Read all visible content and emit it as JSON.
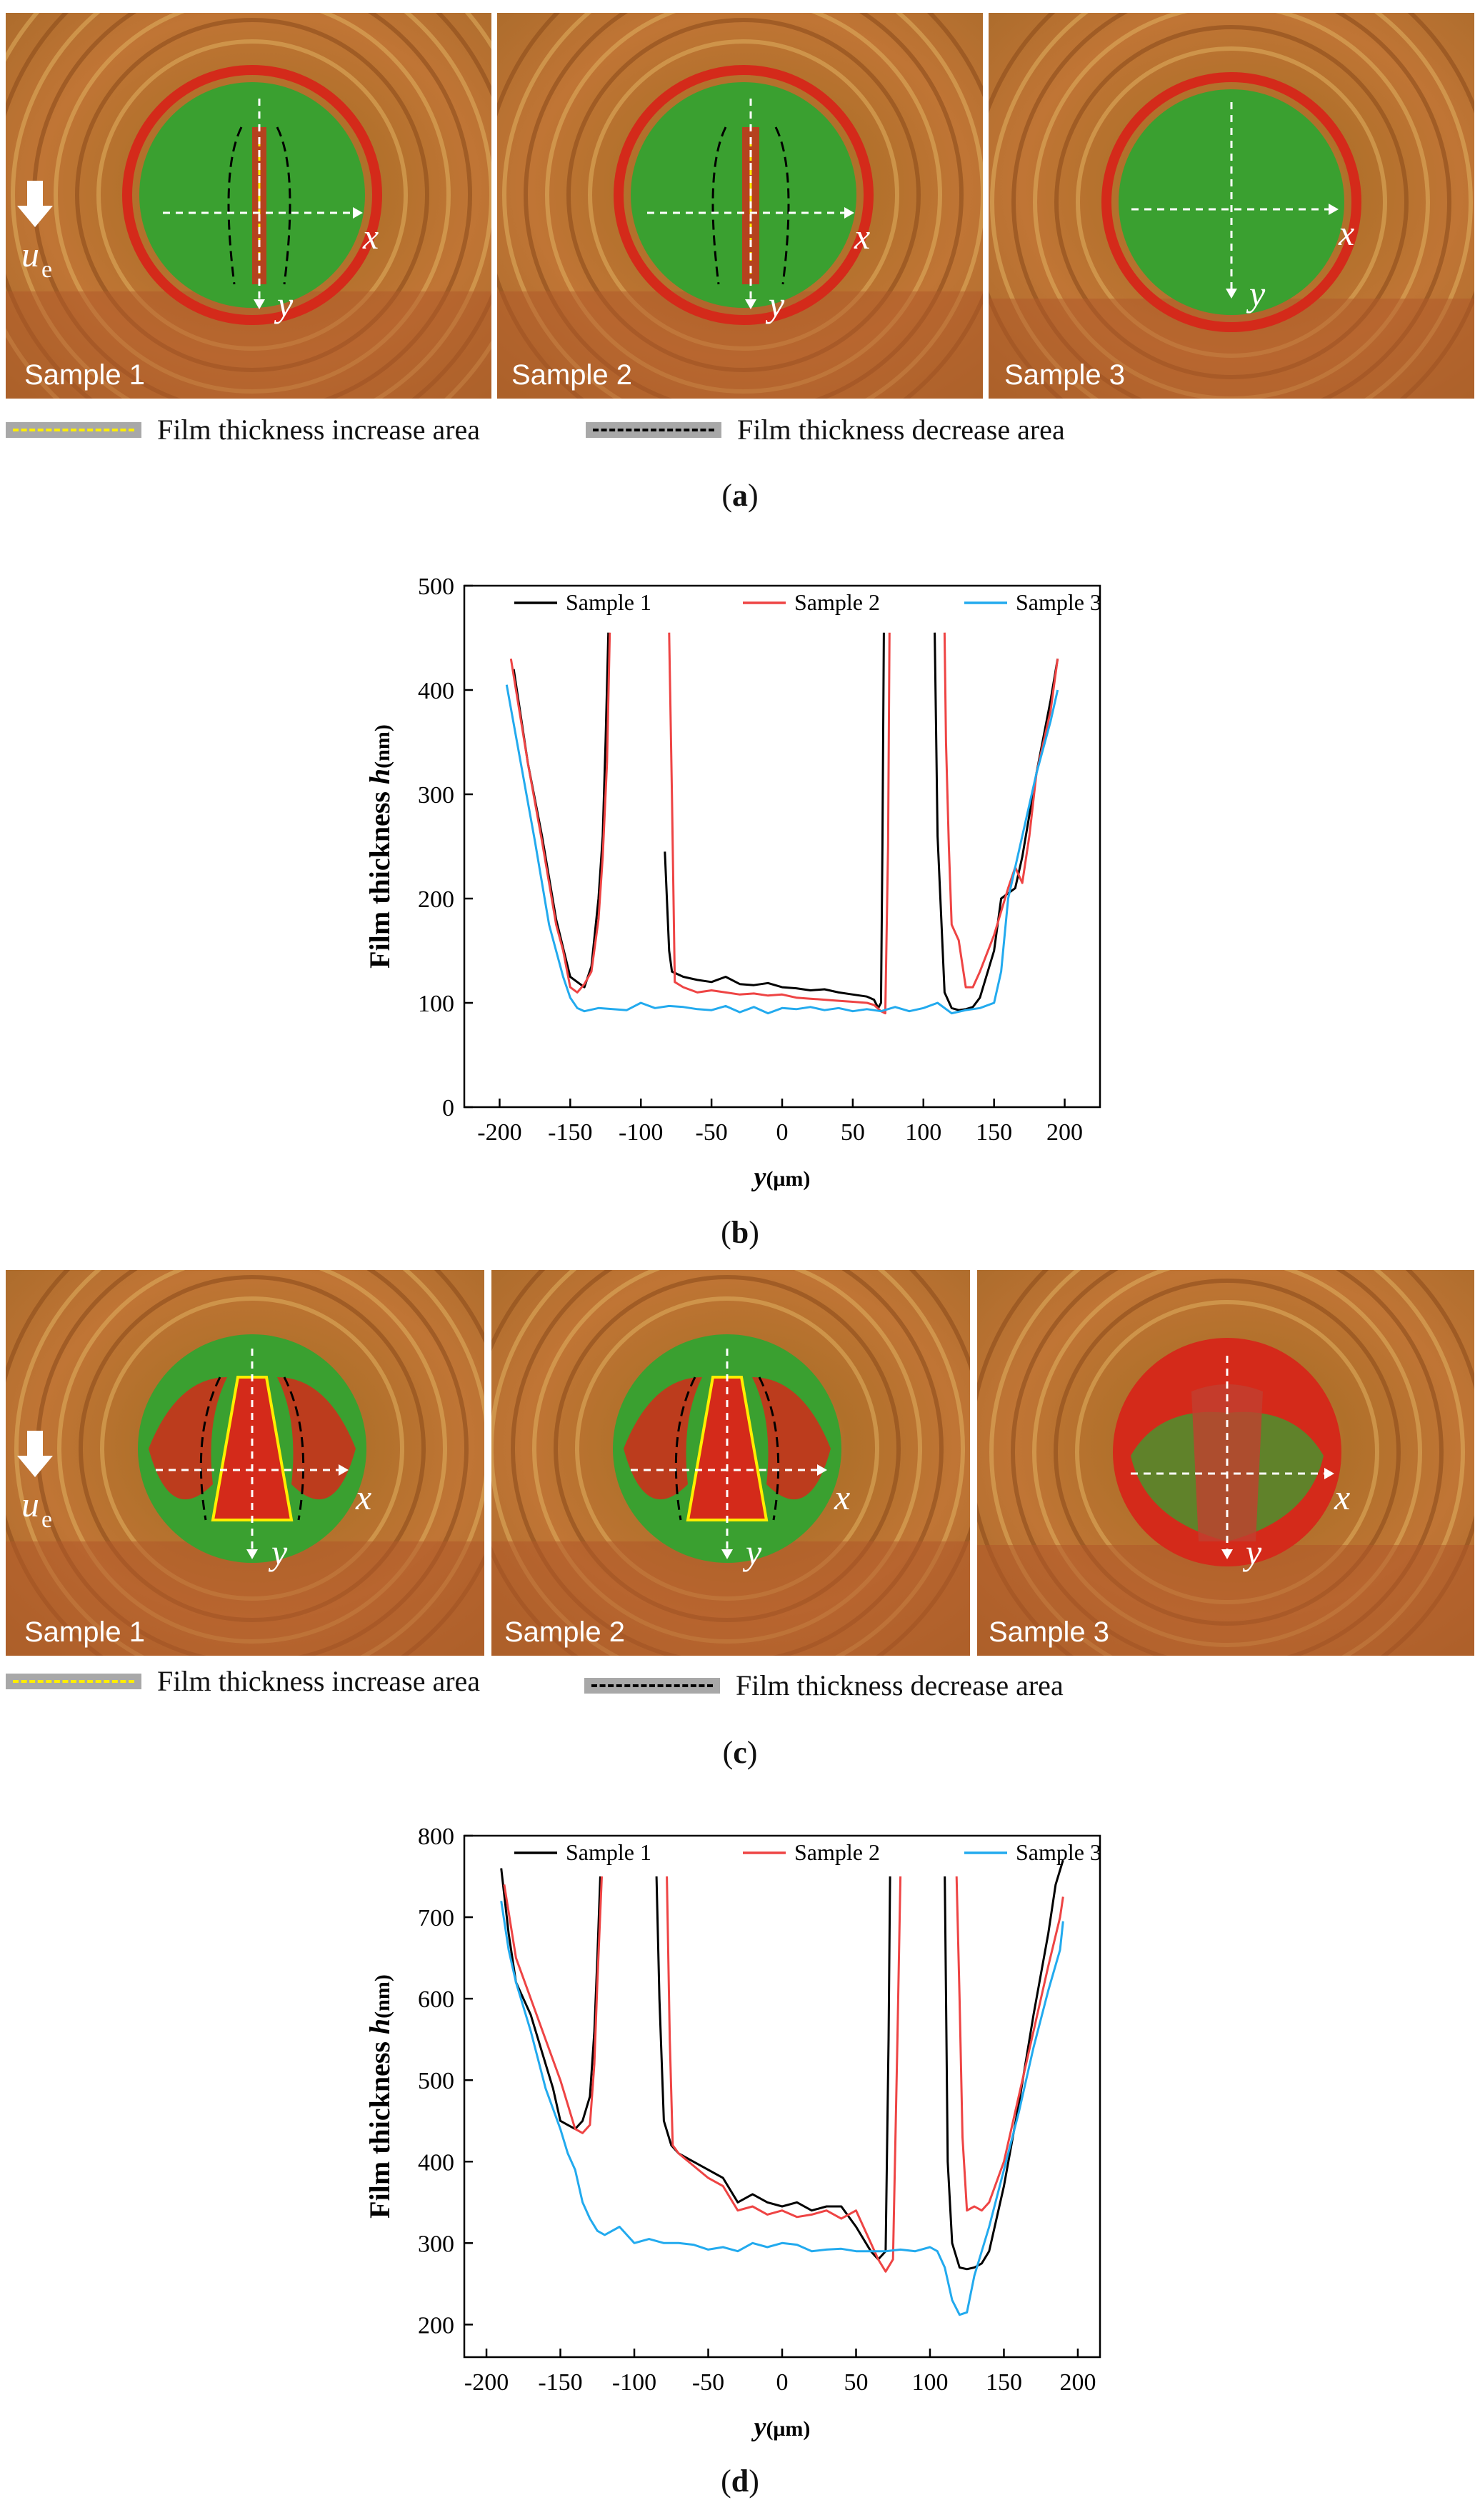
{
  "panels": {
    "a": {
      "label": "a",
      "images": [
        {
          "label": "Sample 1",
          "x_axis": "x",
          "y_axis": "y",
          "speed_symbol": "u",
          "speed_subscript": "e"
        },
        {
          "label": "Sample 2",
          "x_axis": "x",
          "y_axis": "y"
        },
        {
          "label": "Sample 3",
          "x_axis": "x",
          "y_axis": "y"
        }
      ],
      "legend": {
        "increase": "Film thickness increase area",
        "decrease": "Film thickness decrease area"
      }
    },
    "b": {
      "label": "b"
    },
    "c": {
      "label": "c",
      "images": [
        {
          "label": "Sample 1",
          "x_axis": "x",
          "y_axis": "y",
          "speed_symbol": "u",
          "speed_subscript": "e"
        },
        {
          "label": "Sample 2",
          "x_axis": "x",
          "y_axis": "y"
        },
        {
          "label": "Sample 3",
          "x_axis": "x",
          "y_axis": "y"
        }
      ],
      "legend": {
        "increase": "Film thickness increase area",
        "decrease": "Film thickness decrease area"
      }
    },
    "d": {
      "label": "d"
    }
  },
  "colors": {
    "sample1": "#000000",
    "sample2": "#ee4444",
    "sample3": "#22aaee",
    "increase_dash": "#ffee00",
    "decrease_dash": "#000000",
    "fringe_orange": "#c8853a",
    "fringe_red": "#d42a1a",
    "fringe_green": "#3aa030"
  },
  "chart_data": [
    {
      "id": "b",
      "type": "line",
      "ylabel": "Film thickness h",
      "ylabel_unit": "(nm)",
      "xlabel": "y",
      "xlabel_unit": "(μm)",
      "xlim": [
        -225,
        225
      ],
      "ylim": [
        0,
        500
      ],
      "xticks": [
        -200,
        -150,
        -100,
        -50,
        0,
        50,
        100,
        150,
        200
      ],
      "yticks": [
        0,
        100,
        200,
        300,
        400,
        500
      ],
      "series": [
        {
          "name": "Sample 1",
          "color": "#000000",
          "segments": [
            {
              "x": [
                -190,
                -180,
                -170,
                -160,
                -150,
                -145,
                -140,
                -135,
                -130,
                -127,
                -125,
                -123
              ],
              "y": [
                420,
                330,
                260,
                180,
                125,
                120,
                115,
                135,
                200,
                260,
                350,
                455
              ]
            },
            {
              "x": [
                -83,
                -80,
                -78,
                -70,
                -60,
                -50,
                -40,
                -30,
                -20,
                -10,
                0,
                10,
                20,
                30,
                40,
                50,
                60,
                65,
                68,
                70,
                71,
                72
              ],
              "y": [
                245,
                150,
                130,
                125,
                122,
                120,
                125,
                118,
                117,
                119,
                115,
                114,
                112,
                113,
                110,
                108,
                106,
                103,
                95,
                100,
                250,
                455
              ]
            },
            {
              "x": [
                108,
                110,
                115,
                120,
                125,
                130,
                135,
                140,
                150,
                155,
                160,
                165,
                170,
                180,
                190,
                195
              ],
              "y": [
                455,
                260,
                110,
                95,
                93,
                94,
                96,
                105,
                150,
                200,
                205,
                210,
                240,
                320,
                390,
                430
              ]
            }
          ]
        },
        {
          "name": "Sample 2",
          "color": "#ee4444",
          "segments": [
            {
              "x": [
                -192,
                -180,
                -170,
                -160,
                -155,
                -150,
                -145,
                -140,
                -135,
                -130,
                -127,
                -124,
                -122
              ],
              "y": [
                430,
                330,
                255,
                175,
                150,
                115,
                110,
                118,
                130,
                180,
                240,
                330,
                455
              ]
            },
            {
              "x": [
                -80,
                -78,
                -76,
                -70,
                -60,
                -50,
                -40,
                -30,
                -20,
                -10,
                0,
                10,
                20,
                30,
                40,
                50,
                60,
                65,
                70,
                73,
                75,
                76
              ],
              "y": [
                455,
                300,
                120,
                115,
                110,
                112,
                110,
                108,
                109,
                107,
                108,
                105,
                104,
                103,
                102,
                101,
                100,
                98,
                92,
                90,
                250,
                455
              ]
            },
            {
              "x": [
                115,
                116,
                118,
                120,
                125,
                130,
                135,
                140,
                150,
                160,
                165,
                170,
                175,
                180,
                190,
                195
              ],
              "y": [
                455,
                350,
                250,
                175,
                160,
                115,
                115,
                130,
                165,
                210,
                230,
                215,
                260,
                320,
                380,
                430
              ]
            }
          ]
        },
        {
          "name": "Sample 3",
          "color": "#22aaee",
          "segments": [
            {
              "x": [
                -195,
                -185,
                -175,
                -165,
                -155,
                -150,
                -145,
                -140,
                -130,
                -120,
                -110,
                -100,
                -90,
                -80,
                -70,
                -60,
                -50,
                -40,
                -30,
                -20,
                -10,
                0,
                10,
                20,
                30,
                40,
                50,
                60,
                70,
                80,
                90,
                100,
                110,
                120,
                130,
                140,
                150,
                155,
                160,
                170,
                180,
                190,
                195
              ],
              "y": [
                405,
                330,
                255,
                175,
                125,
                105,
                95,
                92,
                95,
                94,
                93,
                100,
                95,
                97,
                96,
                94,
                93,
                97,
                91,
                96,
                90,
                95,
                94,
                96,
                93,
                95,
                92,
                94,
                92,
                96,
                92,
                95,
                100,
                90,
                93,
                95,
                100,
                130,
                200,
                260,
                320,
                370,
                400
              ]
            }
          ]
        }
      ]
    },
    {
      "id": "d",
      "type": "line",
      "ylabel": "Film thickness h",
      "ylabel_unit": "(nm)",
      "xlabel": "y",
      "xlabel_unit": "(μm)",
      "xlim": [
        -215,
        215
      ],
      "ylim": [
        160,
        800
      ],
      "xticks": [
        -200,
        -150,
        -100,
        -50,
        0,
        50,
        100,
        150,
        200
      ],
      "yticks": [
        200,
        300,
        400,
        500,
        600,
        700,
        800
      ],
      "series": [
        {
          "name": "Sample 1",
          "color": "#000000",
          "segments": [
            {
              "x": [
                -190,
                -185,
                -180,
                -170,
                -160,
                -155,
                -150,
                -145,
                -140,
                -135,
                -130,
                -127,
                -125,
                -123
              ],
              "y": [
                760,
                680,
                620,
                580,
                520,
                490,
                450,
                445,
                440,
                450,
                480,
                560,
                650,
                750
              ]
            },
            {
              "x": [
                -85,
                -83,
                -80,
                -75,
                -70,
                -60,
                -50,
                -40,
                -30,
                -20,
                -10,
                0,
                10,
                20,
                30,
                40,
                50,
                60,
                65,
                70,
                72,
                73
              ],
              "y": [
                750,
                600,
                450,
                420,
                410,
                400,
                390,
                380,
                350,
                360,
                350,
                345,
                350,
                340,
                345,
                345,
                320,
                290,
                280,
                290,
                550,
                750
              ]
            },
            {
              "x": [
                110,
                112,
                115,
                120,
                125,
                130,
                135,
                140,
                150,
                160,
                170,
                180,
                185,
                190
              ],
              "y": [
                750,
                400,
                300,
                270,
                268,
                270,
                275,
                290,
                370,
                470,
                580,
                680,
                740,
                770
              ]
            }
          ]
        },
        {
          "name": "Sample 2",
          "color": "#ee4444",
          "segments": [
            {
              "x": [
                -188,
                -180,
                -170,
                -160,
                -150,
                -145,
                -140,
                -135,
                -130,
                -127,
                -125,
                -122
              ],
              "y": [
                740,
                650,
                600,
                550,
                500,
                470,
                440,
                435,
                445,
                520,
                620,
                750
              ]
            },
            {
              "x": [
                -78,
                -76,
                -74,
                -70,
                -60,
                -50,
                -40,
                -30,
                -20,
                -10,
                0,
                10,
                20,
                30,
                40,
                50,
                60,
                65,
                70,
                75,
                78,
                80
              ],
              "y": [
                750,
                550,
                420,
                410,
                395,
                380,
                370,
                340,
                345,
                335,
                340,
                332,
                335,
                340,
                330,
                340,
                300,
                280,
                265,
                280,
                550,
                750
              ]
            },
            {
              "x": [
                118,
                120,
                122,
                125,
                130,
                135,
                140,
                150,
                160,
                170,
                180,
                188,
                190
              ],
              "y": [
                750,
                600,
                430,
                340,
                345,
                340,
                350,
                400,
                480,
                560,
                640,
                700,
                725
              ]
            }
          ]
        },
        {
          "name": "Sample 3",
          "color": "#22aaee",
          "segments": [
            {
              "x": [
                -190,
                -185,
                -180,
                -170,
                -160,
                -150,
                -145,
                -140,
                -135,
                -130,
                -125,
                -120,
                -110,
                -100,
                -90,
                -80,
                -70,
                -60,
                -50,
                -40,
                -30,
                -20,
                -10,
                0,
                10,
                20,
                30,
                40,
                50,
                60,
                70,
                80,
                90,
                100,
                105,
                110,
                115,
                120,
                125,
                130,
                140,
                150,
                160,
                170,
                180,
                188,
                190
              ],
              "y": [
                720,
                660,
                620,
                560,
                490,
                440,
                410,
                390,
                350,
                330,
                315,
                310,
                320,
                300,
                305,
                300,
                300,
                298,
                292,
                295,
                290,
                300,
                295,
                300,
                298,
                290,
                292,
                293,
                290,
                290,
                290,
                292,
                290,
                295,
                290,
                270,
                230,
                212,
                215,
                260,
                320,
                390,
                460,
                540,
                610,
                660,
                695
              ]
            }
          ]
        }
      ]
    }
  ]
}
